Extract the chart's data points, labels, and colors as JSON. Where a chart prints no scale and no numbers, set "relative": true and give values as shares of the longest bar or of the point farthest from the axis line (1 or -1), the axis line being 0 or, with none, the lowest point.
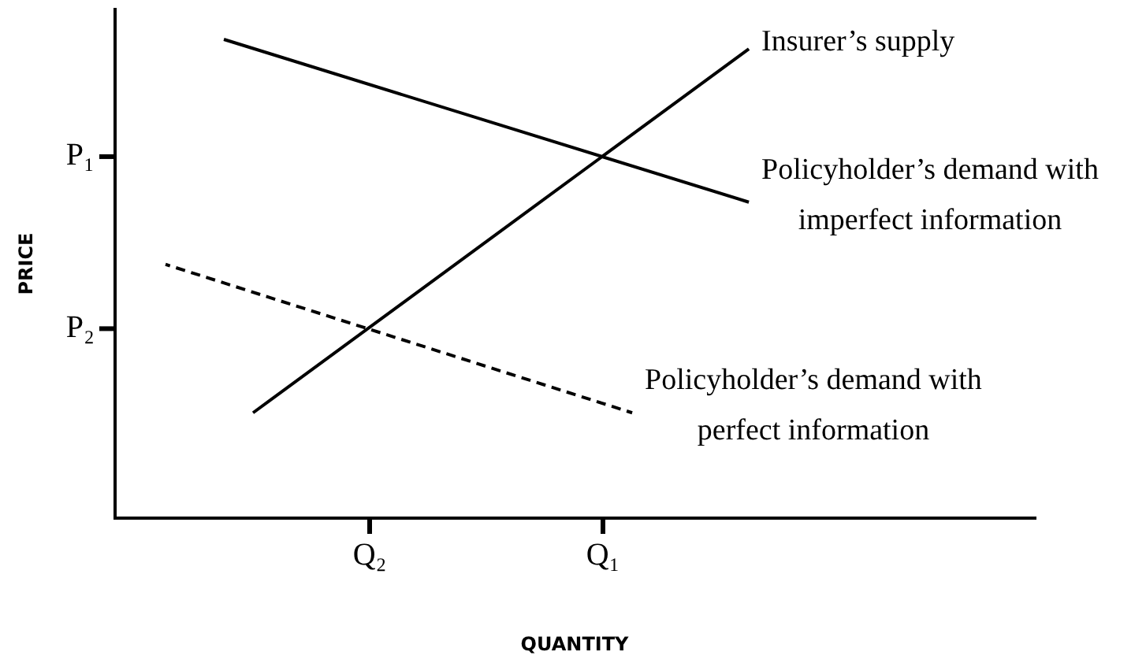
{
  "chart_data": {
    "type": "line",
    "relative": true,
    "xlabel": "QUANTITY",
    "ylabel": "PRICE",
    "grid": false,
    "legend": false,
    "marker": "none",
    "categories": [
      null,
      null,
      null,
      null,
      null,
      null,
      null,
      null,
      "Q₂",
      null,
      null,
      null,
      null,
      null,
      null,
      null,
      "Q₁",
      null,
      null,
      null,
      null,
      null,
      null,
      null,
      null,
      null,
      null,
      null,
      null,
      null,
      null
    ],
    "annotations": [
      "P₁",
      "P₂"
    ],
    "series": [
      {
        "name": "Insurer’s supply",
        "color": "#000000",
        "line_style": "solid",
        "values": [
          null,
          null,
          null,
          null,
          0.22,
          null,
          null,
          null,
          null,
          null,
          null,
          null,
          null,
          null,
          null,
          null,
          null,
          null,
          null,
          null,
          null,
          0.98,
          null,
          null,
          null,
          null,
          null,
          null,
          null,
          null,
          null
        ]
      },
      {
        "name": "Policyholder’s demand with imperfect information",
        "color": "#000000",
        "line_style": "solid",
        "values": [
          null,
          null,
          null,
          1.0,
          null,
          null,
          null,
          null,
          null,
          null,
          null,
          null,
          null,
          null,
          null,
          null,
          null,
          null,
          null,
          null,
          null,
          0.66,
          null,
          null,
          null,
          null,
          null,
          null,
          null,
          null,
          null
        ]
      },
      {
        "name": "Policyholder’s demand with perfect information",
        "color": "#000000",
        "line_style": "dashed",
        "values": [
          null,
          0.53,
          null,
          null,
          null,
          null,
          null,
          null,
          null,
          null,
          null,
          null,
          null,
          null,
          null,
          null,
          null,
          0.22,
          null,
          null,
          null,
          null,
          null,
          null,
          null,
          null,
          null,
          null,
          null,
          null,
          null
        ]
      }
    ]
  }
}
